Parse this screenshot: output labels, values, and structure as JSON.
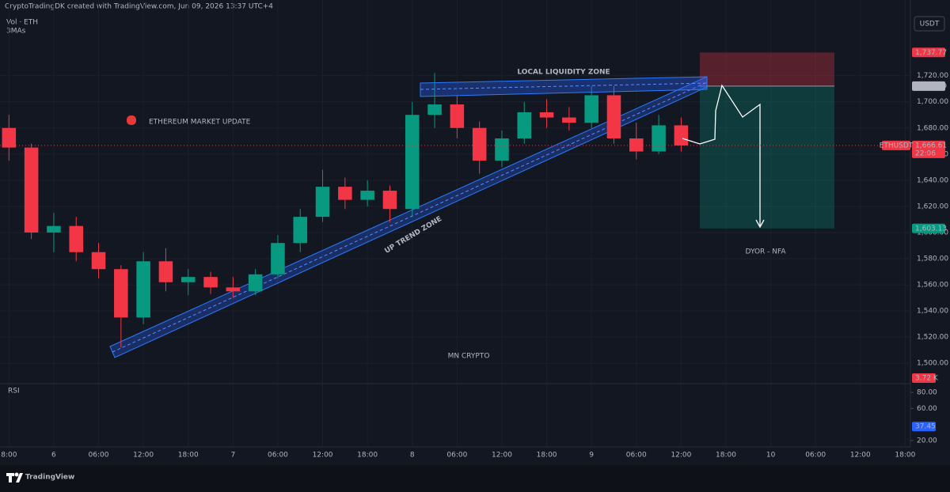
{
  "header": {
    "credit": "CryptoTradingDK created with TradingView.com, Jun 09, 2026 13:37 UTC+4",
    "volume": "Vol · ETH",
    "mas": "3MAs",
    "currency": "USDT"
  },
  "chart_data": [
    {
      "type": "candlestick",
      "symbol": "ETHUSDT",
      "title": "ETHEREUM MARKET UPDATE",
      "watermark": "MN CRYPTO",
      "disclaimer": "DYOR - NFA",
      "annotations": [
        "LOCAL LIQUIDITY ZONE",
        "UP TREND ZONE"
      ],
      "x": [
        -6,
        -3,
        0,
        3,
        6,
        9,
        12,
        15,
        18,
        21,
        24,
        27,
        30,
        33,
        36,
        39,
        42,
        45,
        48,
        51,
        54,
        57,
        60,
        63,
        66,
        69,
        72,
        75,
        78,
        81,
        84
      ],
      "open": [
        1680,
        1665,
        1600,
        1605,
        1585,
        1572,
        1535,
        1578,
        1562,
        1566,
        1558,
        1555,
        1568,
        1592,
        1612,
        1635,
        1625,
        1632,
        1618,
        1690,
        1698,
        1680,
        1655,
        1672,
        1692,
        1688,
        1684,
        1705,
        1672,
        1662,
        1682
      ],
      "high": [
        1690,
        1668,
        1615,
        1612,
        1592,
        1575,
        1585,
        1588,
        1572,
        1570,
        1566,
        1572,
        1598,
        1618,
        1648,
        1642,
        1640,
        1636,
        1700,
        1722,
        1705,
        1685,
        1678,
        1700,
        1702,
        1696,
        1712,
        1712,
        1684,
        1690,
        1688
      ],
      "low": [
        1655,
        1595,
        1585,
        1578,
        1565,
        1512,
        1530,
        1555,
        1552,
        1553,
        1550,
        1552,
        1565,
        1585,
        1608,
        1618,
        1620,
        1608,
        1612,
        1680,
        1672,
        1645,
        1650,
        1668,
        1680,
        1678,
        1680,
        1668,
        1656,
        1660,
        1662
      ],
      "close": [
        1665,
        1600,
        1605,
        1585,
        1572,
        1535,
        1578,
        1562,
        1566,
        1558,
        1555,
        1568,
        1592,
        1612,
        1635,
        1625,
        1632,
        1618,
        1690,
        1698,
        1680,
        1655,
        1672,
        1692,
        1688,
        1684,
        1705,
        1672,
        1662,
        1682,
        1666.61
      ],
      "up_color": "#089981",
      "down_color": "#f23645",
      "xlim": [
        -7.2,
        114.7
      ],
      "xticks": [
        {
          "value": -6,
          "label": "8:00"
        },
        {
          "value": 0,
          "label": "6"
        },
        {
          "value": 6,
          "label": "06:00"
        },
        {
          "value": 12,
          "label": "12:00"
        },
        {
          "value": 18,
          "label": "18:00"
        },
        {
          "value": 24,
          "label": "7"
        },
        {
          "value": 30,
          "label": "06:00"
        },
        {
          "value": 36,
          "label": "12:00"
        },
        {
          "value": 42,
          "label": "18:00"
        },
        {
          "value": 48,
          "label": "8"
        },
        {
          "value": 54,
          "label": "06:00"
        },
        {
          "value": 60,
          "label": "12:00"
        },
        {
          "value": 66,
          "label": "18:00"
        },
        {
          "value": 72,
          "label": "9"
        },
        {
          "value": 78,
          "label": "06:00"
        },
        {
          "value": 84,
          "label": "12:00"
        },
        {
          "value": 90,
          "label": "18:00"
        },
        {
          "value": 96,
          "label": "10"
        },
        {
          "value": 102,
          "label": "06:00"
        },
        {
          "value": 108,
          "label": "12:00"
        },
        {
          "value": 114,
          "label": "18:00"
        }
      ],
      "ylim": [
        1485,
        1767
      ],
      "yticks": [
        {
          "value": 1500,
          "label": "1,500.00"
        },
        {
          "value": 1520,
          "label": "1,520.00"
        },
        {
          "value": 1540,
          "label": "1,540.00"
        },
        {
          "value": 1560,
          "label": "1,560.00"
        },
        {
          "value": 1580,
          "label": "1,580.00"
        },
        {
          "value": 1600,
          "label": "1,600.00"
        },
        {
          "value": 1620,
          "label": "1,620.00"
        },
        {
          "value": 1640,
          "label": "1,640.00"
        },
        {
          "value": 1660,
          "label": "1,660.00"
        },
        {
          "value": 1680,
          "label": "1,680.00"
        },
        {
          "value": 1700,
          "label": "1,700.00"
        },
        {
          "value": 1720,
          "label": "1,720.00"
        }
      ],
      "stop": {
        "value": 1737.77,
        "label": "1,737.77"
      },
      "entry": {
        "value": 1711.99,
        "label": "1,711.99"
      },
      "target": {
        "value": 1603.13,
        "label": "1,603.13"
      },
      "last": {
        "value": 1666.61,
        "label": "1,666.61"
      },
      "countdown": "22:06",
      "volume_label": "3.72 K"
    },
    {
      "type": "indicator",
      "title": "RSI",
      "ylim": [
        12,
        89
      ],
      "yticks": [
        {
          "value": 80,
          "label": "80.00"
        },
        {
          "value": 60,
          "label": "60.00"
        },
        {
          "value": 20,
          "label": "20.00"
        }
      ],
      "last": 37.45,
      "color": "#2962ff"
    }
  ],
  "footer": {
    "brand": "TradingView"
  }
}
